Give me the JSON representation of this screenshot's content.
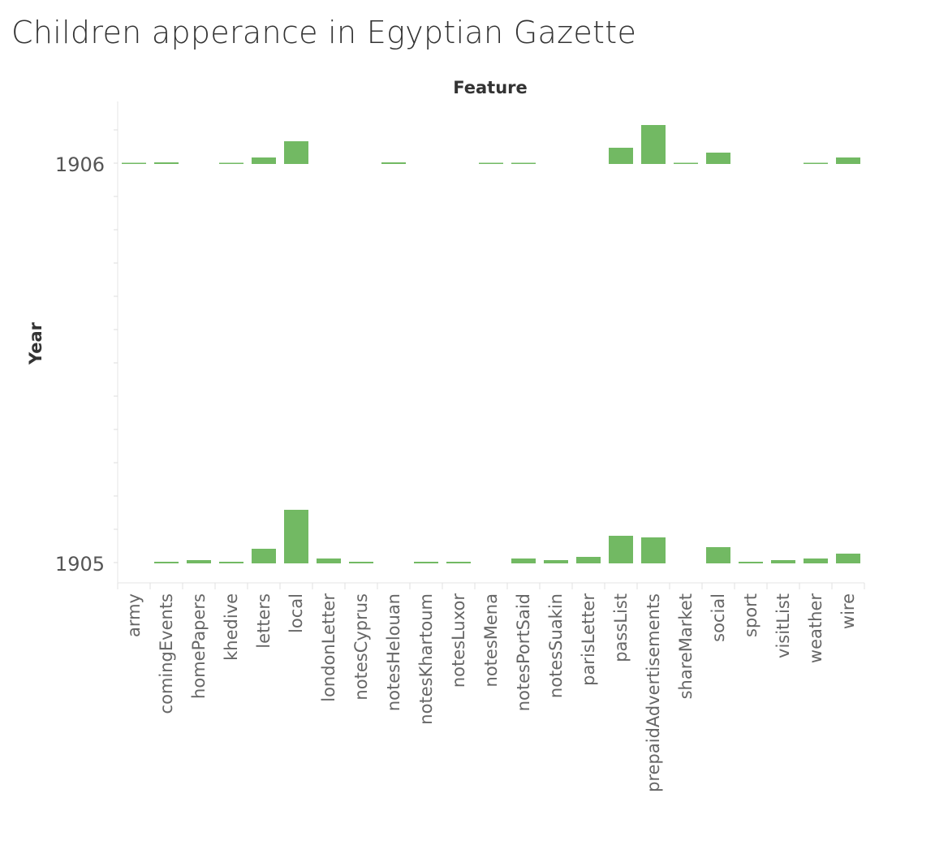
{
  "title": "Children apperance in Egyptian Gazette",
  "chart_data": {
    "type": "bar",
    "column_title": "Feature",
    "row_title": "Year",
    "categories": [
      "army",
      "comingEvents",
      "homePapers",
      "khedive",
      "letters",
      "local",
      "londonLetter",
      "notesCyprus",
      "notesHelouan",
      "notesKhartoum",
      "notesLuxor",
      "notesMena",
      "notesPortSaid",
      "notesSuakin",
      "parisLetter",
      "passList",
      "prepaidAdvertisements",
      "shareMarket",
      "social",
      "sport",
      "visitList",
      "weather",
      "wire"
    ],
    "rows": [
      "1906",
      "1905"
    ],
    "series": [
      {
        "name": "1906",
        "values": [
          1,
          2,
          0,
          1,
          8,
          28,
          0,
          0,
          2,
          0,
          0,
          1,
          1,
          0,
          0,
          20,
          48,
          1,
          14,
          0,
          0,
          1,
          8
        ]
      },
      {
        "name": "1905",
        "values": [
          0,
          2,
          4,
          2,
          18,
          66,
          6,
          2,
          0,
          2,
          2,
          0,
          6,
          4,
          8,
          34,
          32,
          0,
          20,
          2,
          4,
          6,
          12
        ]
      }
    ],
    "bar_color": "#72b963",
    "grid": false
  }
}
